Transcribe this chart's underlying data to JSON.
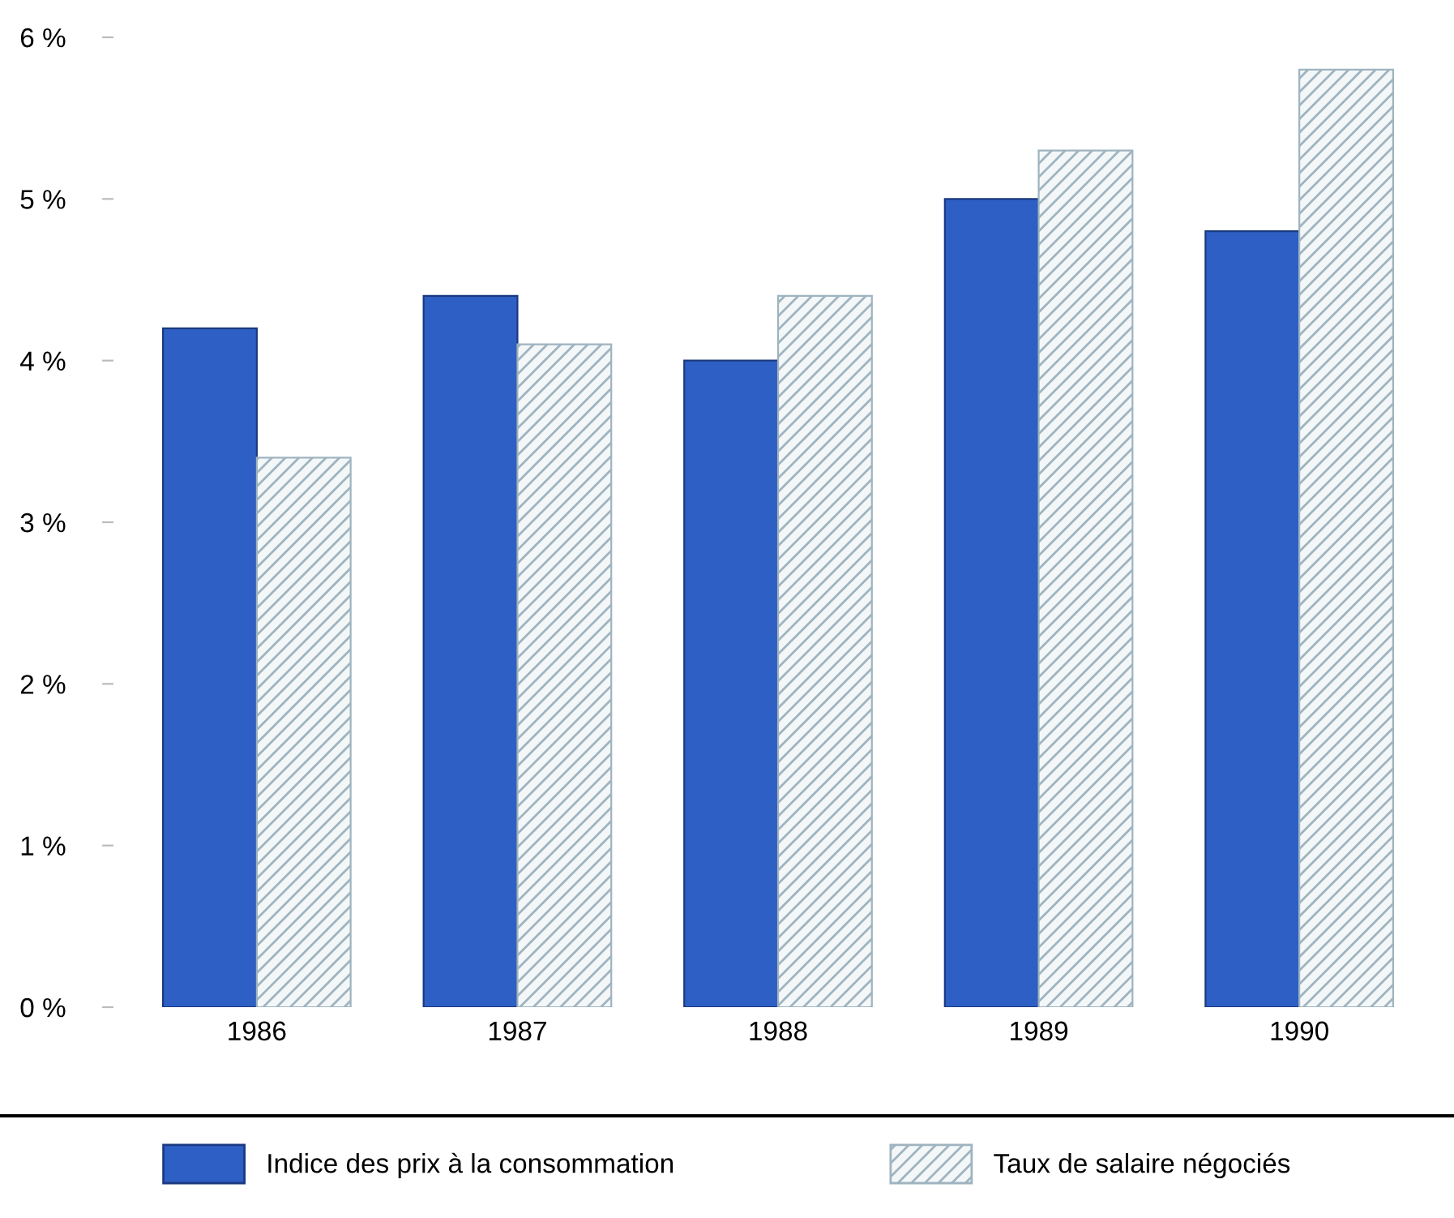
{
  "chart_data": {
    "type": "bar",
    "categories": [
      "1986",
      "1987",
      "1988",
      "1989",
      "1990"
    ],
    "series": [
      {
        "name": "Indice des prix à la consommation",
        "color": "#2e5fc4",
        "values": [
          4.2,
          4.4,
          4.0,
          5.0,
          4.8
        ]
      },
      {
        "name": "Taux de salaire négociés",
        "color": "#9fb4c0",
        "values": [
          3.4,
          4.1,
          4.4,
          5.3,
          5.8
        ]
      }
    ],
    "ylim": [
      0,
      6
    ],
    "yticks": [
      {
        "value": 0,
        "label": "0 %"
      },
      {
        "value": 1,
        "label": "1 %"
      },
      {
        "value": 2,
        "label": "2 %"
      },
      {
        "value": 3,
        "label": "3 %"
      },
      {
        "value": 4,
        "label": "4 %"
      },
      {
        "value": 5,
        "label": "5 %"
      },
      {
        "value": 6,
        "label": "6 %"
      }
    ],
    "grid": false,
    "legend": "bottom"
  }
}
